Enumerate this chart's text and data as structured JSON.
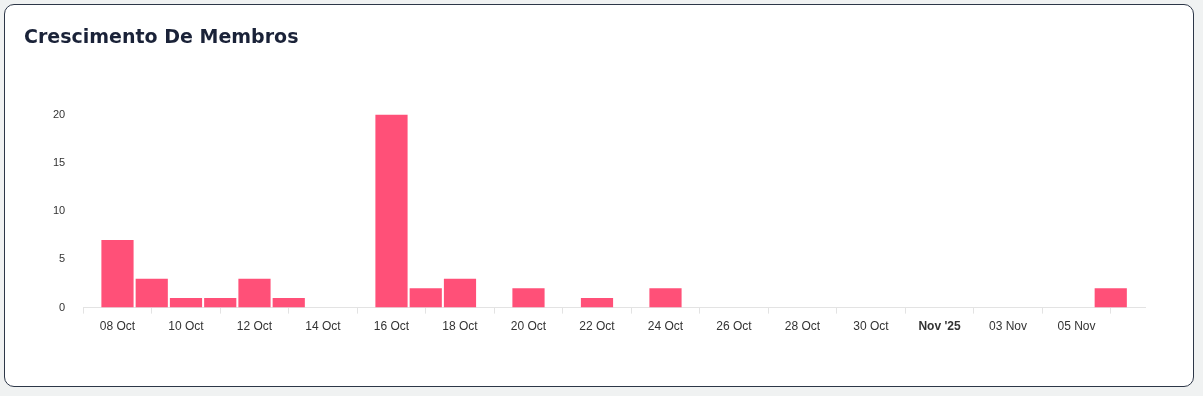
{
  "chart_data": {
    "type": "bar",
    "title": "Crescimento De Membros",
    "x": [
      "2025-10-08",
      "2025-10-09",
      "2025-10-10",
      "2025-10-11",
      "2025-10-12",
      "2025-10-13",
      "2025-10-14",
      "2025-10-15",
      "2025-10-16",
      "2025-10-17",
      "2025-10-18",
      "2025-10-19",
      "2025-10-20",
      "2025-10-21",
      "2025-10-22",
      "2025-10-23",
      "2025-10-24",
      "2025-10-25",
      "2025-10-26",
      "2025-10-27",
      "2025-10-28",
      "2025-10-29",
      "2025-10-30",
      "2025-10-31",
      "2025-11-01",
      "2025-11-02",
      "2025-11-03",
      "2025-11-04",
      "2025-11-05",
      "2025-11-06"
    ],
    "values": [
      7,
      3,
      1,
      1,
      3,
      1,
      0,
      0,
      20,
      2,
      3,
      0,
      2,
      0,
      1,
      0,
      2,
      0,
      0,
      0,
      0,
      0,
      0,
      0,
      0,
      0,
      0,
      0,
      0,
      2
    ],
    "color": "#ff5078",
    "xlim": [
      "2025-10-07",
      "2025-11-07"
    ],
    "xticks": [
      {
        "value": "2025-10-08",
        "label": "08 Oct"
      },
      {
        "value": "2025-10-10",
        "label": "10 Oct"
      },
      {
        "value": "2025-10-12",
        "label": "12 Oct"
      },
      {
        "value": "2025-10-14",
        "label": "14 Oct"
      },
      {
        "value": "2025-10-16",
        "label": "16 Oct"
      },
      {
        "value": "2025-10-18",
        "label": "18 Oct"
      },
      {
        "value": "2025-10-20",
        "label": "20 Oct"
      },
      {
        "value": "2025-10-22",
        "label": "22 Oct"
      },
      {
        "value": "2025-10-24",
        "label": "24 Oct"
      },
      {
        "value": "2025-10-26",
        "label": "26 Oct"
      },
      {
        "value": "2025-10-28",
        "label": "28 Oct"
      },
      {
        "value": "2025-10-30",
        "label": "30 Oct"
      },
      {
        "value": "2025-11-01",
        "label": "Nov '25"
      },
      {
        "value": "2025-11-03",
        "label": "03 Nov"
      },
      {
        "value": "2025-11-05",
        "label": "05 Nov"
      }
    ],
    "ylim": [
      0,
      20
    ],
    "yticks": [
      0,
      5,
      10,
      15,
      20
    ],
    "grid": false,
    "legend": false
  }
}
